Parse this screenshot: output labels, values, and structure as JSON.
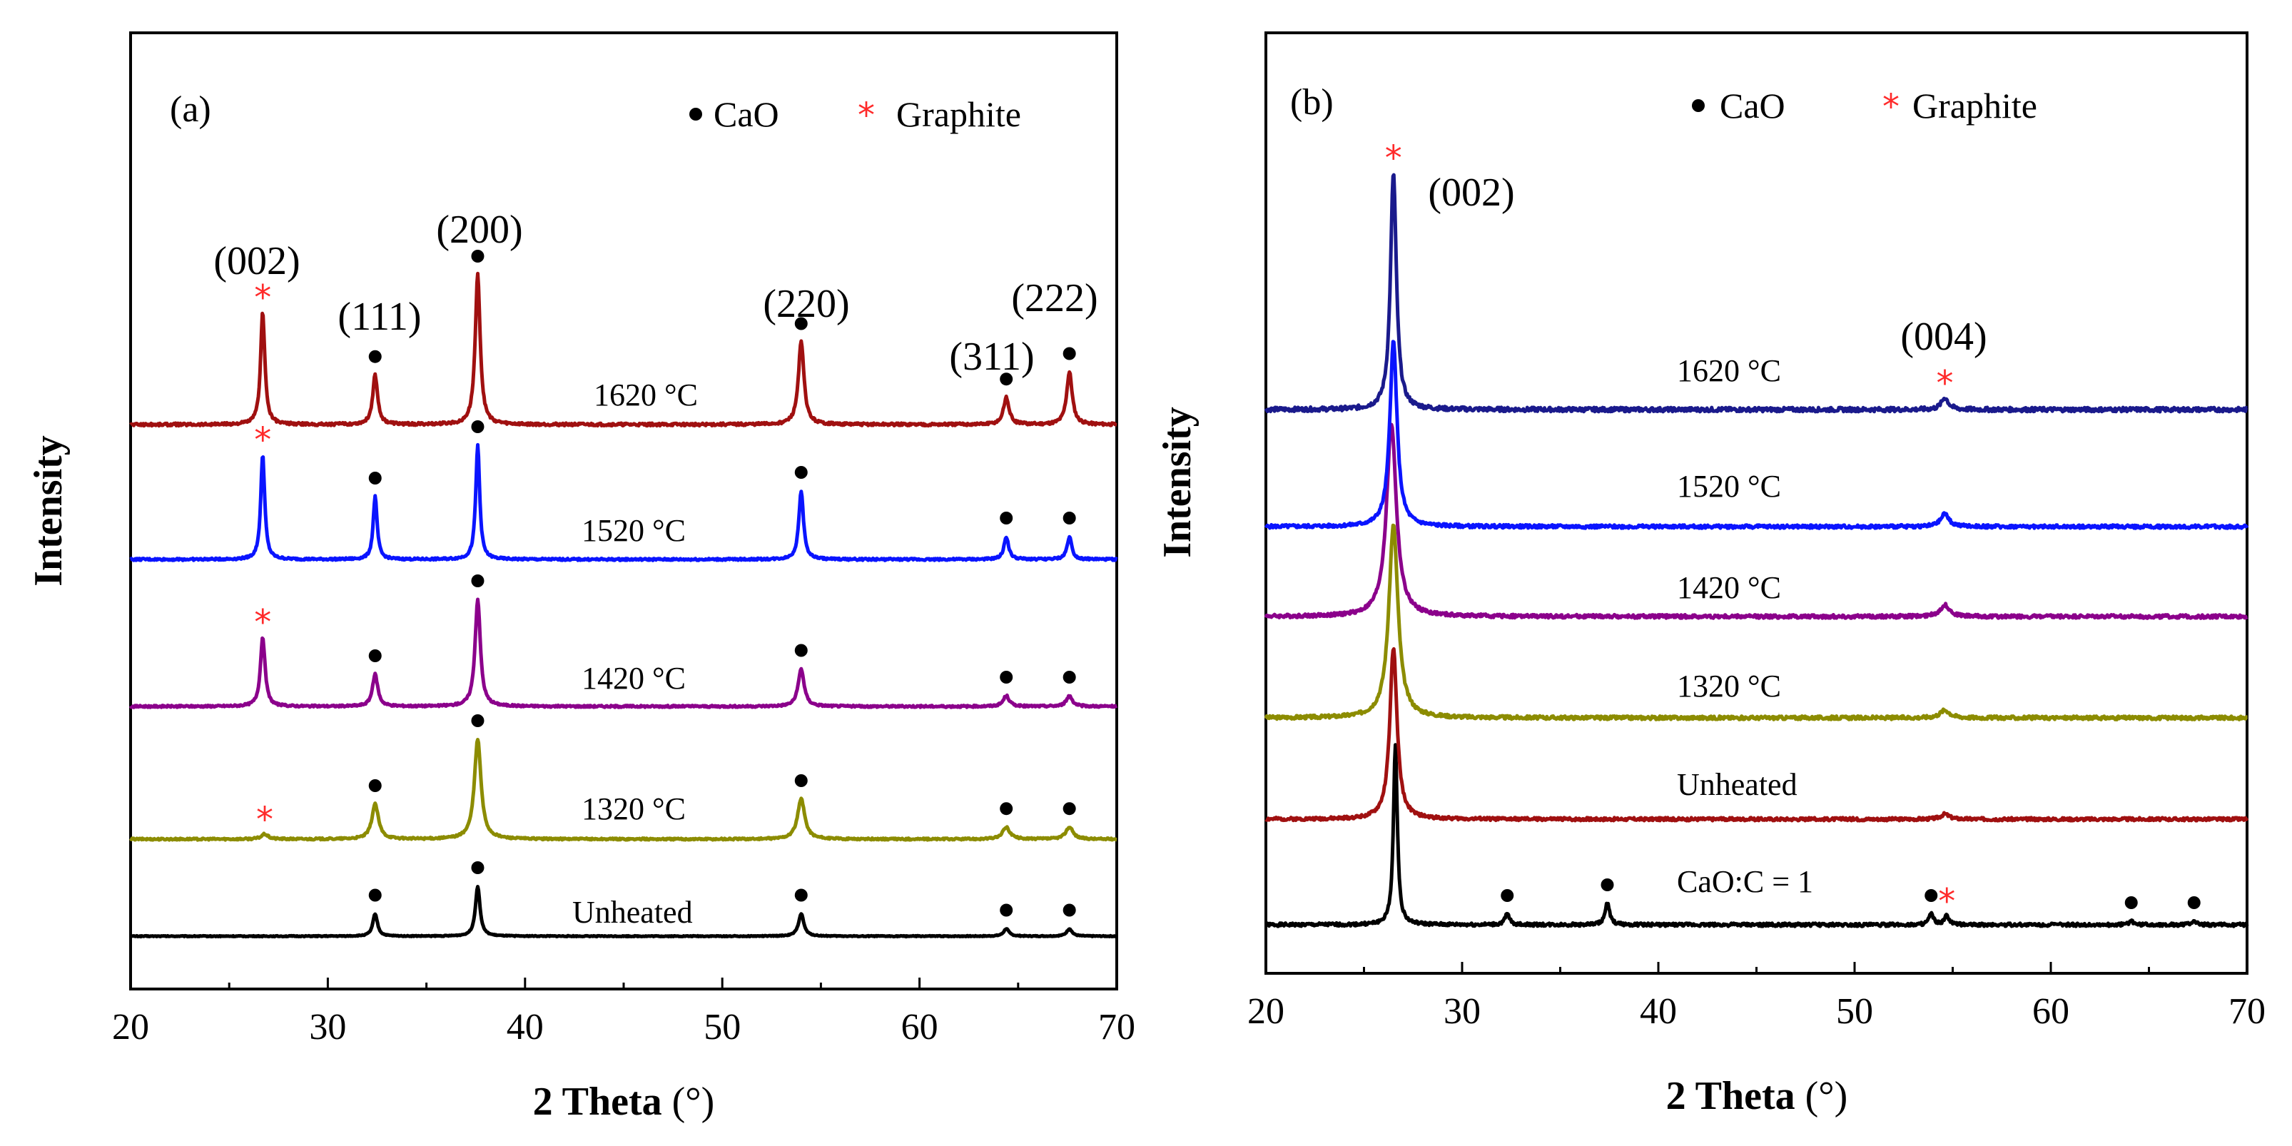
{
  "chart_data": [
    {
      "type": "line",
      "panel_label": "(a)",
      "xlabel": "2 Theta",
      "xlabel_unit": "(°)",
      "ylabel": "Intensity",
      "xlim": [
        20,
        70
      ],
      "x_ticks": [
        "20",
        "30",
        "40",
        "50",
        "60",
        "70"
      ],
      "legend": {
        "cao": "CaO",
        "graphite": "Graphite",
        "cao_color": "#000000",
        "graphite_color": "#ff2a2a"
      },
      "series": [
        {
          "name": "Unheated",
          "label": "Unheated",
          "color": "#000000",
          "peaks": [
            {
              "x": 32.4,
              "h": 0.45,
              "w": 0.14,
              "marker": "dot"
            },
            {
              "x": 37.6,
              "h": 1.0,
              "w": 0.14,
              "marker": "dot"
            },
            {
              "x": 54.0,
              "h": 0.45,
              "w": 0.16,
              "marker": "dot"
            },
            {
              "x": 64.4,
              "h": 0.15,
              "w": 0.16,
              "marker": "dot"
            },
            {
              "x": 67.6,
              "h": 0.15,
              "w": 0.16,
              "marker": "dot"
            }
          ]
        },
        {
          "name": "1320 °C",
          "label": "1320 °C",
          "color": "#8c8c00",
          "peaks": [
            {
              "x": 26.8,
              "h": 0.05,
              "w": 0.2,
              "marker": "star"
            },
            {
              "x": 32.4,
              "h": 0.35,
              "w": 0.2,
              "marker": "dot"
            },
            {
              "x": 37.6,
              "h": 1.0,
              "w": 0.2,
              "marker": "dot"
            },
            {
              "x": 54.0,
              "h": 0.4,
              "w": 0.22,
              "marker": "dot"
            },
            {
              "x": 64.4,
              "h": 0.12,
              "w": 0.22,
              "marker": "dot"
            },
            {
              "x": 67.6,
              "h": 0.12,
              "w": 0.22,
              "marker": "dot"
            }
          ]
        },
        {
          "name": "1420 °C",
          "label": "1420 °C",
          "color": "#8b008b",
          "peaks": [
            {
              "x": 26.7,
              "h": 0.65,
              "w": 0.14,
              "marker": "star"
            },
            {
              "x": 32.4,
              "h": 0.3,
              "w": 0.16,
              "marker": "dot"
            },
            {
              "x": 37.6,
              "h": 1.0,
              "w": 0.16,
              "marker": "dot"
            },
            {
              "x": 54.0,
              "h": 0.35,
              "w": 0.18,
              "marker": "dot"
            },
            {
              "x": 64.4,
              "h": 0.1,
              "w": 0.18,
              "marker": "dot"
            },
            {
              "x": 67.6,
              "h": 0.1,
              "w": 0.18,
              "marker": "dot"
            }
          ]
        },
        {
          "name": "1520 °C",
          "label": "1520 °C",
          "color": "#0a14ff",
          "peaks": [
            {
              "x": 26.7,
              "h": 0.92,
              "w": 0.12,
              "marker": "star"
            },
            {
              "x": 32.4,
              "h": 0.55,
              "w": 0.12,
              "marker": "dot"
            },
            {
              "x": 37.6,
              "h": 1.0,
              "w": 0.12,
              "marker": "dot"
            },
            {
              "x": 54.0,
              "h": 0.6,
              "w": 0.14,
              "marker": "dot"
            },
            {
              "x": 64.4,
              "h": 0.2,
              "w": 0.14,
              "marker": "dot"
            },
            {
              "x": 67.6,
              "h": 0.2,
              "w": 0.14,
              "marker": "dot"
            }
          ]
        },
        {
          "name": "1620 °C",
          "label": "1620 °C",
          "color": "#a01010",
          "peaks": [
            {
              "x": 26.7,
              "h": 0.75,
              "w": 0.13,
              "marker": "star"
            },
            {
              "x": 32.4,
              "h": 0.33,
              "w": 0.15,
              "marker": "dot"
            },
            {
              "x": 37.6,
              "h": 1.0,
              "w": 0.15,
              "marker": "dot"
            },
            {
              "x": 54.0,
              "h": 0.55,
              "w": 0.17,
              "marker": "dot"
            },
            {
              "x": 64.4,
              "h": 0.18,
              "w": 0.17,
              "marker": "dot"
            },
            {
              "x": 67.6,
              "h": 0.35,
              "w": 0.17,
              "marker": "dot"
            }
          ]
        }
      ],
      "annotations": [
        {
          "text": "(002)",
          "x": 26.7
        },
        {
          "text": "(111)",
          "x": 32.4
        },
        {
          "text": "(200)",
          "x": 37.6
        },
        {
          "text": "(220)",
          "x": 54.0
        },
        {
          "text": "(311)",
          "x": 64.4
        },
        {
          "text": "(222)",
          "x": 67.6
        }
      ]
    },
    {
      "type": "line",
      "panel_label": "(b)",
      "xlabel": "2 Theta",
      "xlabel_unit": "(°)",
      "ylabel": "Intensity",
      "xlim": [
        20,
        70
      ],
      "x_ticks": [
        "20",
        "30",
        "40",
        "50",
        "60",
        "70"
      ],
      "legend": {
        "cao": "CaO",
        "graphite": "Graphite",
        "cao_color": "#000000",
        "graphite_color": "#ff2a2a"
      },
      "series": [
        {
          "name": "CaO:C = 1",
          "label": "CaO:C = 1",
          "color": "#000000",
          "peaks": [
            {
              "x": 26.6,
              "h": 1.0,
              "w": 0.12,
              "marker": "none"
            },
            {
              "x": 32.3,
              "h": 0.06,
              "w": 0.14,
              "marker": "dot"
            },
            {
              "x": 37.4,
              "h": 0.12,
              "w": 0.14,
              "marker": "dot"
            },
            {
              "x": 53.9,
              "h": 0.06,
              "w": 0.14,
              "marker": "dot"
            },
            {
              "x": 54.7,
              "h": 0.05,
              "w": 0.14,
              "marker": "star"
            },
            {
              "x": 64.1,
              "h": 0.02,
              "w": 0.14,
              "marker": "dot"
            },
            {
              "x": 67.3,
              "h": 0.02,
              "w": 0.14,
              "marker": "dot"
            }
          ]
        },
        {
          "name": "Unheated",
          "label": "Unheated",
          "color": "#a01010",
          "peaks": [
            {
              "x": 26.5,
              "h": 1.0,
              "w": 0.22,
              "marker": "none"
            },
            {
              "x": 54.6,
              "h": 0.03,
              "w": 0.25,
              "marker": "none"
            }
          ]
        },
        {
          "name": "1320 °C",
          "label": "1320 °C",
          "color": "#8c8c00",
          "peaks": [
            {
              "x": 26.5,
              "h": 1.0,
              "w": 0.28,
              "marker": "none"
            },
            {
              "x": 54.6,
              "h": 0.04,
              "w": 0.3,
              "marker": "none"
            }
          ]
        },
        {
          "name": "1420 °C",
          "label": "1420 °C",
          "color": "#8b008b",
          "peaks": [
            {
              "x": 26.4,
              "h": 1.0,
              "w": 0.3,
              "marker": "none"
            },
            {
              "x": 54.6,
              "h": 0.06,
              "w": 0.3,
              "marker": "none"
            }
          ]
        },
        {
          "name": "1520 °C",
          "label": "1520 °C",
          "color": "#0a14ff",
          "peaks": [
            {
              "x": 26.5,
              "h": 1.0,
              "w": 0.22,
              "marker": "none"
            },
            {
              "x": 54.6,
              "h": 0.07,
              "w": 0.25,
              "marker": "none"
            }
          ]
        },
        {
          "name": "1620 °C",
          "label": "1620 °C",
          "color": "#1a1a8c",
          "peaks": [
            {
              "x": 26.5,
              "h": 1.0,
              "w": 0.18,
              "marker": "star"
            },
            {
              "x": 54.6,
              "h": 0.05,
              "w": 0.22,
              "marker": "star"
            }
          ]
        }
      ],
      "annotations": [
        {
          "text": "(002)",
          "x": 26.5
        },
        {
          "text": "(004)",
          "x": 54.6
        }
      ]
    }
  ]
}
